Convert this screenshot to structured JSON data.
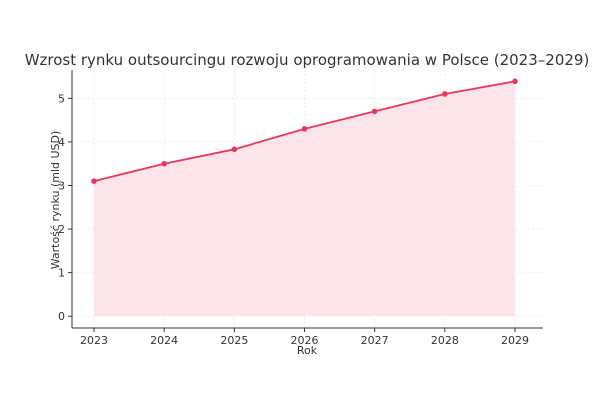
{
  "chart_data": {
    "type": "area",
    "title": "Wzrost rynku outsourcingu rozwoju oprogramowania w Polsce (2023–2029)",
    "xlabel": "Rok",
    "ylabel": "Wartość rynku (mld USD)",
    "x": [
      "2023",
      "2024",
      "2025",
      "2026",
      "2027",
      "2028",
      "2029"
    ],
    "series": [
      {
        "values": [
          3.1,
          3.5,
          3.83,
          4.3,
          4.7,
          5.1,
          5.39
        ]
      }
    ],
    "yticks": [
      "0",
      "1",
      "2",
      "3",
      "4",
      "5"
    ],
    "ylim": [
      -0.27,
      5.65
    ],
    "grid": true,
    "colors": {
      "line": "#e8365d",
      "fill": "#fde4ea",
      "marker": "#e8365d"
    }
  }
}
